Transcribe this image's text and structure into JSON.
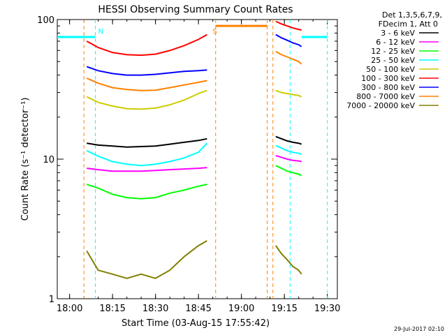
{
  "chart_data": {
    "type": "line",
    "title": "HESSI Observing Summary Count Rates",
    "xlabel": "Start Time (03-Aug-15 17:55:42)",
    "ylabel": "Count Rate (s⁻¹ detector⁻¹)",
    "yscale": "log",
    "ylim": [
      1,
      100
    ],
    "xlim": [
      "17:55:42",
      "19:33:30"
    ],
    "x_ticks": [
      "18:00",
      "18:15",
      "18:30",
      "18:45",
      "19:00",
      "19:15",
      "19:30"
    ],
    "y_ticks": [
      "1",
      "10",
      "100"
    ],
    "legend_header": [
      "Det 1,3,5,6,7,9,",
      "FDecim 1, Att 0"
    ],
    "legend_position": "right",
    "timestamp": "29-Jul-2017 02:10",
    "flag_markers": [
      {
        "label": "N",
        "time": "18:09"
      },
      {
        "label": "S",
        "time": "18:49"
      }
    ],
    "markers": {
      "night_lines": [
        "18:09",
        "19:17",
        "19:30"
      ],
      "saa_lines": [
        "18:05",
        "18:51",
        "19:09",
        "19:11"
      ]
    },
    "series": [
      {
        "name": "3 - 6 keV",
        "color": "#000000",
        "segments": [
          {
            "x": [
              "18:06",
              "18:10",
              "18:15",
              "18:20",
              "18:25",
              "18:30",
              "18:35",
              "18:40",
              "18:45",
              "18:48"
            ],
            "y": [
              13.0,
              12.6,
              12.4,
              12.2,
              12.3,
              12.4,
              12.8,
              13.2,
              13.6,
              14.0
            ]
          },
          {
            "x": [
              "19:12",
              "19:14",
              "19:16",
              "19:18",
              "19:20",
              "19:21"
            ],
            "y": [
              14.5,
              14.0,
              13.5,
              13.2,
              13.0,
              12.8
            ]
          }
        ]
      },
      {
        "name": "6 - 12 keV",
        "color": "#ff00ff",
        "segments": [
          {
            "x": [
              "18:06",
              "18:10",
              "18:15",
              "18:20",
              "18:25",
              "18:30",
              "18:35",
              "18:40",
              "18:45",
              "18:48"
            ],
            "y": [
              8.6,
              8.4,
              8.2,
              8.2,
              8.2,
              8.3,
              8.4,
              8.5,
              8.6,
              8.7
            ]
          },
          {
            "x": [
              "19:12",
              "19:14",
              "19:16",
              "19:18",
              "19:20",
              "19:21"
            ],
            "y": [
              10.6,
              10.3,
              10.0,
              9.8,
              9.7,
              9.6
            ]
          }
        ]
      },
      {
        "name": "12 - 25 keV",
        "color": "#00ff00",
        "segments": [
          {
            "x": [
              "18:06",
              "18:10",
              "18:15",
              "18:20",
              "18:25",
              "18:30",
              "18:35",
              "18:40",
              "18:45",
              "18:48"
            ],
            "y": [
              6.6,
              6.2,
              5.6,
              5.3,
              5.2,
              5.3,
              5.7,
              6.0,
              6.4,
              6.6
            ]
          },
          {
            "x": [
              "19:12",
              "19:14",
              "19:16",
              "19:18",
              "19:20",
              "19:21"
            ],
            "y": [
              9.0,
              8.6,
              8.2,
              8.0,
              7.8,
              7.6
            ]
          }
        ]
      },
      {
        "name": "25 - 50 keV",
        "color": "#00ffff",
        "segments": [
          {
            "x": [
              "18:06",
              "18:10",
              "18:15",
              "18:20",
              "18:25",
              "18:30",
              "18:35",
              "18:40",
              "18:45",
              "18:48"
            ],
            "y": [
              11.5,
              10.5,
              9.6,
              9.2,
              9.0,
              9.2,
              9.6,
              10.2,
              11.2,
              13.0
            ]
          },
          {
            "x": [
              "19:12",
              "19:14",
              "19:16",
              "19:18",
              "19:20",
              "19:21"
            ],
            "y": [
              12.5,
              12.0,
              11.5,
              11.2,
              11.0,
              10.8
            ]
          }
        ]
      },
      {
        "name": "50 - 100 keV",
        "color": "#cccc00",
        "segments": [
          {
            "x": [
              "18:06",
              "18:10",
              "18:15",
              "18:20",
              "18:25",
              "18:30",
              "18:35",
              "18:40",
              "18:45",
              "18:48"
            ],
            "y": [
              28.0,
              25.5,
              24.0,
              23.0,
              22.8,
              23.2,
              24.5,
              26.5,
              29.5,
              31.0
            ]
          },
          {
            "x": [
              "19:12",
              "19:14",
              "19:16",
              "19:18",
              "19:20",
              "19:21"
            ],
            "y": [
              31.0,
              30.0,
              29.5,
              29.0,
              28.5,
              28.0
            ]
          }
        ]
      },
      {
        "name": "100 - 300 keV",
        "color": "#ff0000",
        "segments": [
          {
            "x": [
              "18:06",
              "18:10",
              "18:15",
              "18:20",
              "18:25",
              "18:30",
              "18:35",
              "18:40",
              "18:45",
              "18:48"
            ],
            "y": [
              70.0,
              63.0,
              58.0,
              56.0,
              55.5,
              56.5,
              60.0,
              65.0,
              72.0,
              78.0
            ]
          },
          {
            "x": [
              "19:12",
              "19:14",
              "19:16",
              "19:18",
              "19:20",
              "19:21"
            ],
            "y": [
              97.0,
              93.0,
              90.0,
              87.0,
              85.0,
              84.0
            ]
          }
        ]
      },
      {
        "name": "300 - 800 keV",
        "color": "#0000ff",
        "segments": [
          {
            "x": [
              "18:06",
              "18:10",
              "18:15",
              "18:20",
              "18:25",
              "18:30",
              "18:35",
              "18:40",
              "18:45",
              "18:48"
            ],
            "y": [
              46.0,
              43.0,
              41.0,
              40.0,
              40.0,
              40.5,
              41.5,
              42.5,
              43.0,
              43.5
            ]
          },
          {
            "x": [
              "19:12",
              "19:14",
              "19:16",
              "19:18",
              "19:20",
              "19:21"
            ],
            "y": [
              78.0,
              74.0,
              71.0,
              68.0,
              66.0,
              64.0
            ]
          }
        ]
      },
      {
        "name": "800 - 7000 keV",
        "color": "#ff8000",
        "segments": [
          {
            "x": [
              "18:06",
              "18:10",
              "18:15",
              "18:20",
              "18:25",
              "18:30",
              "18:35",
              "18:40",
              "18:45",
              "18:48"
            ],
            "y": [
              38.0,
              35.0,
              32.5,
              31.5,
              31.0,
              31.2,
              32.5,
              34.0,
              35.5,
              36.5
            ]
          },
          {
            "x": [
              "19:12",
              "19:14",
              "19:16",
              "19:18",
              "19:20",
              "19:21"
            ],
            "y": [
              59.0,
              56.0,
              54.0,
              52.0,
              50.0,
              48.0
            ]
          }
        ]
      },
      {
        "name": "7000 - 20000 keV",
        "color": "#808000",
        "segments": [
          {
            "x": [
              "18:06",
              "18:10",
              "18:15",
              "18:20",
              "18:25",
              "18:30",
              "18:35",
              "18:40",
              "18:45",
              "18:48"
            ],
            "y": [
              2.2,
              1.6,
              1.5,
              1.4,
              1.5,
              1.4,
              1.6,
              2.0,
              2.4,
              2.6
            ]
          },
          {
            "x": [
              "19:12",
              "19:14",
              "19:16",
              "19:18",
              "19:20",
              "19:21"
            ],
            "y": [
              2.4,
              2.1,
              1.9,
              1.7,
              1.6,
              1.5
            ]
          }
        ]
      }
    ],
    "flag_bars": [
      {
        "color": "#00ffff",
        "segments": [
          {
            "x": [
              "17:55:42",
              "18:09"
            ],
            "y": [
              75.0,
              75.0
            ]
          },
          {
            "x": [
              "19:21",
              "19:30"
            ],
            "y": [
              75.0,
              75.0
            ]
          }
        ]
      },
      {
        "color": "#ff8000",
        "segments": [
          {
            "x": [
              "18:51",
              "19:09"
            ],
            "y": [
              90.0,
              90.0
            ]
          }
        ]
      }
    ]
  }
}
